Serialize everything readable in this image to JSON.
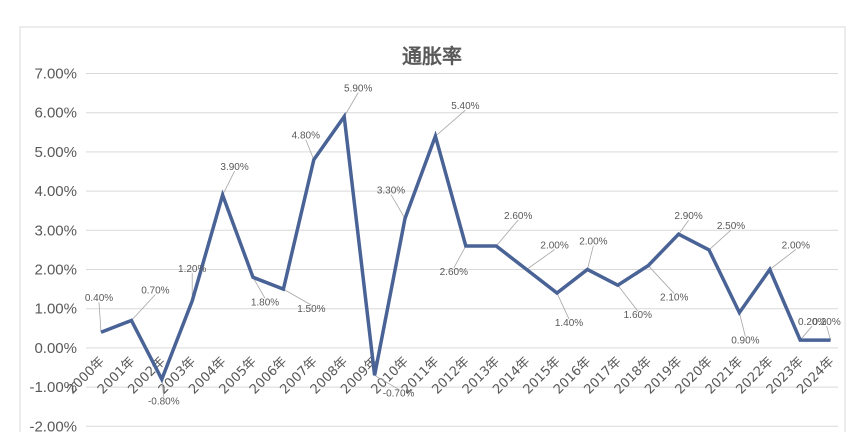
{
  "chart_data": {
    "type": "line",
    "title": "通胀率",
    "categories": [
      "2000年",
      "2001年",
      "2002年",
      "2003年",
      "2004年",
      "2005年",
      "2006年",
      "2007年",
      "2008年",
      "2009年",
      "2010年",
      "2011年",
      "2012年",
      "2013年",
      "2014年",
      "2015年",
      "2016年",
      "2017年",
      "2018年",
      "2019年",
      "2020年",
      "2021年",
      "2022年",
      "2023年",
      "2024年"
    ],
    "values": [
      0.4,
      0.7,
      -0.8,
      1.2,
      3.9,
      1.8,
      1.5,
      4.8,
      5.9,
      -0.7,
      3.3,
      5.4,
      2.6,
      2.6,
      2.0,
      1.4,
      2.0,
      1.6,
      2.1,
      2.9,
      2.5,
      0.9,
      2.0,
      0.2,
      0.2
    ],
    "data_labels": [
      "0.40%",
      "0.70%",
      "-0.80%",
      "1.20%",
      "3.90%",
      "1.80%",
      "1.50%",
      "4.80%",
      "5.90%",
      "-0.70%",
      "3.30%",
      "5.40%",
      "2.60%",
      "2.60%",
      "2.00%",
      "1.40%",
      "2.00%",
      "1.60%",
      "2.10%",
      "2.90%",
      "2.50%",
      "0.90%",
      "2.00%",
      "0.20%",
      "0.20%"
    ],
    "y_ticks": [
      -2,
      -1,
      0,
      1,
      2,
      3,
      4,
      5,
      6,
      7
    ],
    "y_tick_labels": [
      "-2.00%",
      "-1.00%",
      "0.00%",
      "1.00%",
      "2.00%",
      "3.00%",
      "4.00%",
      "5.00%",
      "6.00%",
      "7.00%"
    ],
    "ylim": [
      -2,
      7
    ],
    "grid": true,
    "legend": "none",
    "series_color": "#4a6396",
    "grid_color": "#d9d9d9",
    "text_color": "#595959"
  }
}
